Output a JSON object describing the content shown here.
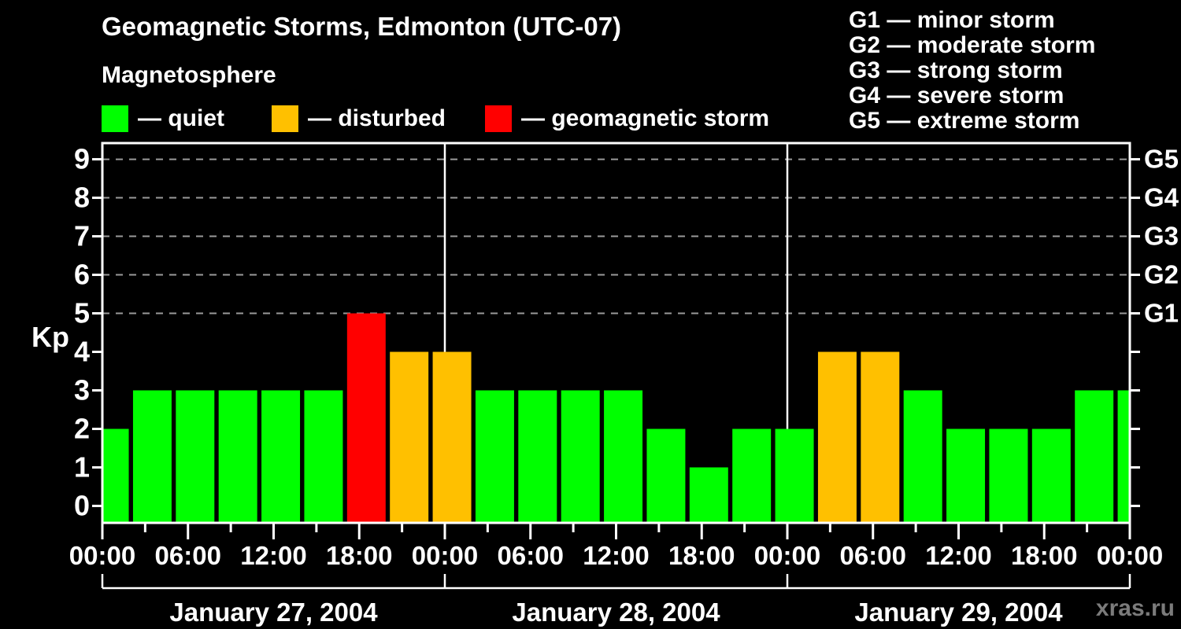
{
  "header": {
    "title": "Geomagnetic Storms, Edmonton (UTC-07)",
    "subtitle": "Magnetosphere"
  },
  "legend": {
    "items": [
      {
        "label": "— quiet",
        "state": "quiet",
        "color": "#00ff00"
      },
      {
        "label": "— disturbed",
        "state": "disturbed",
        "color": "#ffc000"
      },
      {
        "label": "— geomagnetic storm",
        "state": "storm",
        "color": "#ff0000"
      }
    ]
  },
  "g_legend": {
    "items": [
      {
        "text": "G1 — minor storm"
      },
      {
        "text": "G2 — moderate storm"
      },
      {
        "text": "G3 — strong storm"
      },
      {
        "text": "G4 — severe storm"
      },
      {
        "text": "G5 — extreme storm"
      }
    ]
  },
  "watermark": "xras.ru",
  "chart_data": {
    "type": "bar",
    "title": "Geomagnetic Storms, Edmonton (UTC-07)",
    "ylabel": "Kp",
    "xlabel": "",
    "xlim_hours": [
      0,
      72
    ],
    "ylim": [
      -0.44,
      9.42
    ],
    "bar_interval_hours": 3,
    "grid": "dashed horizontal lines at G-storm levels Kp 5-9 only",
    "legend_position": "top",
    "state_colors": {
      "quiet": "#00ff00",
      "disturbed": "#ffc000",
      "storm": "#ff0000"
    },
    "colors": {
      "frame": "#ffffff",
      "gridline": "#9a9a9a",
      "day_separator": "#ffffff",
      "text": "#ffffff",
      "watermark": "#7b7b7b"
    },
    "bars": [
      {
        "t": 0,
        "kp": 2,
        "state": "quiet"
      },
      {
        "t": 3,
        "kp": 3,
        "state": "quiet"
      },
      {
        "t": 6,
        "kp": 3,
        "state": "quiet"
      },
      {
        "t": 9,
        "kp": 3,
        "state": "quiet"
      },
      {
        "t": 12,
        "kp": 3,
        "state": "quiet"
      },
      {
        "t": 15,
        "kp": 3,
        "state": "quiet"
      },
      {
        "t": 18,
        "kp": 5,
        "state": "storm"
      },
      {
        "t": 21,
        "kp": 4,
        "state": "disturbed"
      },
      {
        "t": 24,
        "kp": 4,
        "state": "disturbed"
      },
      {
        "t": 27,
        "kp": 3,
        "state": "quiet"
      },
      {
        "t": 30,
        "kp": 3,
        "state": "quiet"
      },
      {
        "t": 33,
        "kp": 3,
        "state": "quiet"
      },
      {
        "t": 36,
        "kp": 3,
        "state": "quiet"
      },
      {
        "t": 39,
        "kp": 2,
        "state": "quiet"
      },
      {
        "t": 42,
        "kp": 1,
        "state": "quiet"
      },
      {
        "t": 45,
        "kp": 2,
        "state": "quiet"
      },
      {
        "t": 48,
        "kp": 2,
        "state": "quiet"
      },
      {
        "t": 51,
        "kp": 4,
        "state": "disturbed"
      },
      {
        "t": 54,
        "kp": 4,
        "state": "disturbed"
      },
      {
        "t": 57,
        "kp": 3,
        "state": "quiet"
      },
      {
        "t": 60,
        "kp": 2,
        "state": "quiet"
      },
      {
        "t": 63,
        "kp": 2,
        "state": "quiet"
      },
      {
        "t": 66,
        "kp": 2,
        "state": "quiet"
      },
      {
        "t": 69,
        "kp": 3,
        "state": "quiet"
      },
      {
        "t": 72,
        "kp": 3,
        "state": "quiet"
      }
    ],
    "y_ticks": [
      {
        "kp": 0,
        "label": "0"
      },
      {
        "kp": 1,
        "label": "1"
      },
      {
        "kp": 2,
        "label": "2"
      },
      {
        "kp": 3,
        "label": "3"
      },
      {
        "kp": 4,
        "label": "4"
      },
      {
        "kp": 5,
        "label": "5"
      },
      {
        "kp": 6,
        "label": "6"
      },
      {
        "kp": 7,
        "label": "7"
      },
      {
        "kp": 8,
        "label": "8"
      },
      {
        "kp": 9,
        "label": "9"
      }
    ],
    "g_labels": [
      {
        "kp": 5,
        "label": "G1"
      },
      {
        "kp": 6,
        "label": "G2"
      },
      {
        "kp": 7,
        "label": "G3"
      },
      {
        "kp": 8,
        "label": "G4"
      },
      {
        "kp": 9,
        "label": "G5"
      }
    ],
    "gridlines_kp": [
      5,
      6,
      7,
      8,
      9
    ],
    "day_separators_hours": [
      24,
      48
    ],
    "x_major_ticks": [
      {
        "t": 0,
        "label": "00:00"
      },
      {
        "t": 6,
        "label": "06:00"
      },
      {
        "t": 12,
        "label": "12:00"
      },
      {
        "t": 18,
        "label": "18:00"
      },
      {
        "t": 24,
        "label": "00:00"
      },
      {
        "t": 30,
        "label": "06:00"
      },
      {
        "t": 36,
        "label": "12:00"
      },
      {
        "t": 42,
        "label": "18:00"
      },
      {
        "t": 48,
        "label": "00:00"
      },
      {
        "t": 54,
        "label": "06:00"
      },
      {
        "t": 60,
        "label": "12:00"
      },
      {
        "t": 66,
        "label": "18:00"
      },
      {
        "t": 72,
        "label": "00:00"
      }
    ],
    "x_minor_ticks_hours": [
      3,
      9,
      15,
      21,
      27,
      33,
      39,
      45,
      51,
      57,
      63,
      69
    ],
    "day_brackets": [
      {
        "label": "January 27, 2004",
        "from_hour": 0,
        "to_hour": 24
      },
      {
        "label": "January 28, 2004",
        "from_hour": 24,
        "to_hour": 48
      },
      {
        "label": "January 29, 2004",
        "from_hour": 48,
        "to_hour": 72
      }
    ]
  }
}
